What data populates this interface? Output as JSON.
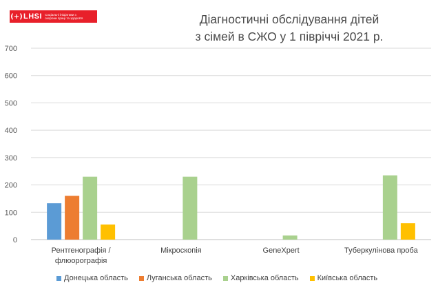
{
  "logo": {
    "mark": "(+)",
    "brand": "LHSI",
    "tagline": "Соціальні ініціативи з охорони праці та здоров'я"
  },
  "chart_data": {
    "type": "bar",
    "title_lines": [
      "Діагностичні обслідування дітей",
      "з сімей в СЖО у 1 півріччі 2021 р."
    ],
    "categories": [
      [
        "Рентгенографія /",
        "флюорографія"
      ],
      [
        "Мікроскопія"
      ],
      [
        "GeneXpert"
      ],
      [
        "Туберкулінова проба"
      ]
    ],
    "series": [
      {
        "name": "Донецька область",
        "color": "#5b9bd5",
        "values": [
          133,
          0,
          0,
          0
        ]
      },
      {
        "name": "Луганська область",
        "color": "#ed7d31",
        "values": [
          160,
          0,
          0,
          0
        ]
      },
      {
        "name": "Харківська область",
        "color": "#a9d18e",
        "values": [
          230,
          230,
          15,
          235
        ]
      },
      {
        "name": "Київська область",
        "color": "#ffc000",
        "values": [
          55,
          0,
          0,
          60
        ]
      }
    ],
    "ylim": [
      0,
      700
    ],
    "yticks": [
      "0",
      "100",
      "200",
      "300",
      "400",
      "500",
      "600",
      "700"
    ],
    "grid": true,
    "legend_position": "bottom"
  }
}
